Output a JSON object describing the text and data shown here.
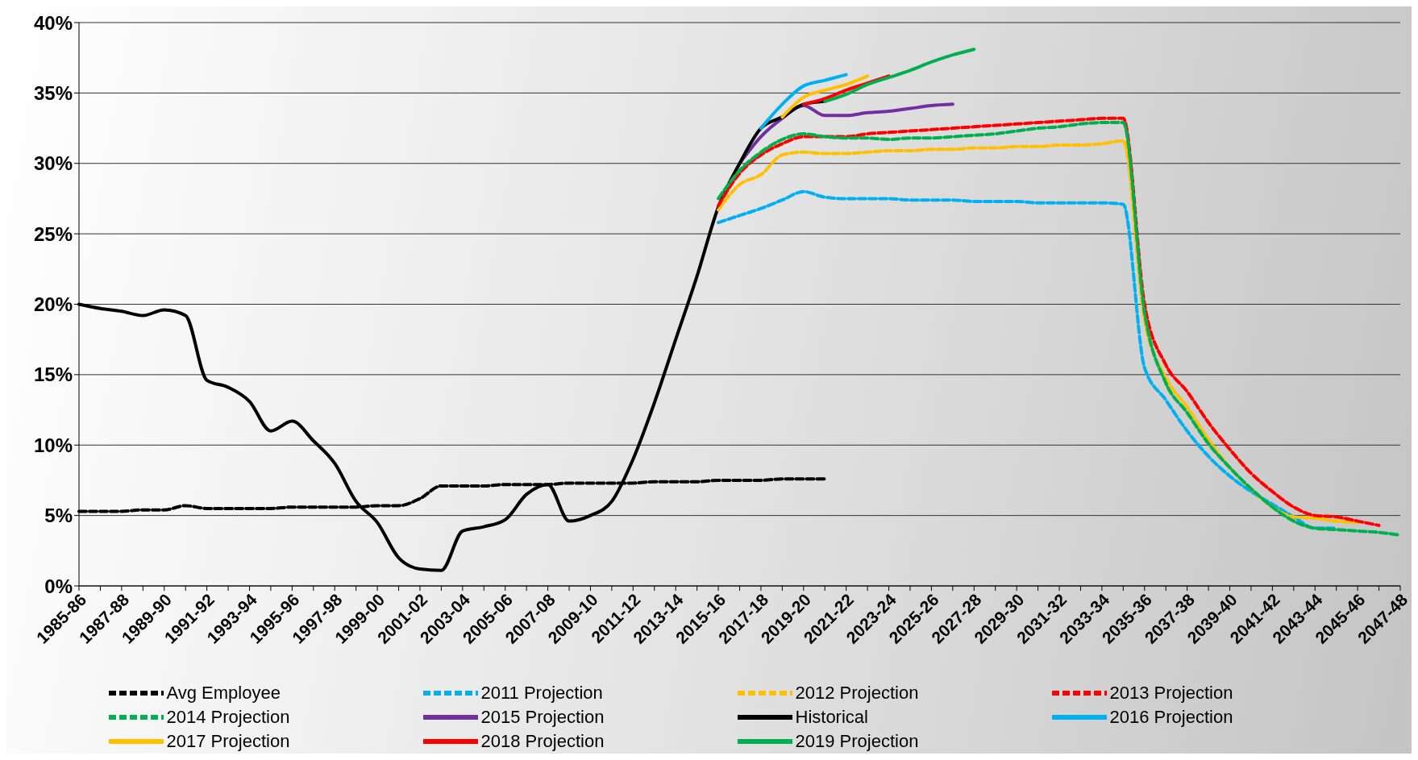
{
  "chart_data": {
    "type": "line",
    "categories": [
      "1985-86",
      null,
      "1987-88",
      null,
      "1989-90",
      null,
      "1991-92",
      null,
      "1993-94",
      null,
      "1995-96",
      null,
      "1997-98",
      null,
      "1999-00",
      null,
      "2001-02",
      null,
      "2003-04",
      null,
      "2005-06",
      null,
      "2007-08",
      null,
      "2009-10",
      null,
      "2011-12",
      null,
      "2013-14",
      null,
      "2015-16",
      null,
      "2017-18",
      null,
      "2019-20",
      null,
      "2021-22",
      null,
      "2023-24",
      null,
      "2025-26",
      null,
      "2027-28",
      null,
      "2029-30",
      null,
      "2031-32",
      null,
      "2033-34",
      null,
      "2035-36",
      null,
      "2037-38",
      null,
      "2039-40",
      null,
      "2041-42",
      null,
      "2043-44",
      null,
      "2045-46",
      null,
      "2047-48"
    ],
    "series": [
      {
        "name": "Avg Employee",
        "color": "#000000",
        "line_style": "dashed",
        "values": [
          5.3,
          5.3,
          5.3,
          5.4,
          5.4,
          5.7,
          5.5,
          5.5,
          5.5,
          5.5,
          5.6,
          5.6,
          5.6,
          5.6,
          5.7,
          5.7,
          6.2,
          7.1,
          7.1,
          7.1,
          7.2,
          7.2,
          7.2,
          7.3,
          7.3,
          7.3,
          7.3,
          7.4,
          7.4,
          7.4,
          7.5,
          7.5,
          7.5,
          7.6,
          7.6,
          7.6,
          null,
          null,
          null,
          null,
          null,
          null,
          null,
          null,
          null,
          null,
          null,
          null,
          null,
          null,
          null,
          null,
          null,
          null,
          null,
          null,
          null,
          null,
          null,
          null,
          null,
          null,
          null
        ]
      },
      {
        "name": "2011 Projection",
        "color": "#00b0f0",
        "line_style": "dashed",
        "values": [
          null,
          null,
          null,
          null,
          null,
          null,
          null,
          null,
          null,
          null,
          null,
          null,
          null,
          null,
          null,
          null,
          null,
          null,
          null,
          null,
          null,
          null,
          null,
          null,
          null,
          null,
          null,
          null,
          null,
          null,
          25.8,
          26.3,
          26.8,
          27.4,
          28.0,
          27.6,
          27.5,
          27.5,
          27.5,
          27.4,
          27.4,
          27.4,
          27.3,
          27.3,
          27.3,
          27.2,
          27.2,
          27.2,
          27.2,
          27.1,
          15.5,
          13.2,
          11.0,
          9.2,
          7.8,
          6.7,
          5.8,
          4.9,
          4.1,
          4.1,
          null,
          null,
          null
        ]
      },
      {
        "name": "2012 Projection",
        "color": "#ffc000",
        "line_style": "dashed",
        "values": [
          null,
          null,
          null,
          null,
          null,
          null,
          null,
          null,
          null,
          null,
          null,
          null,
          null,
          null,
          null,
          null,
          null,
          null,
          null,
          null,
          null,
          null,
          null,
          null,
          null,
          null,
          null,
          null,
          null,
          null,
          26.7,
          28.5,
          29.2,
          30.6,
          30.8,
          30.7,
          30.7,
          30.8,
          30.9,
          30.9,
          31.0,
          31.0,
          31.1,
          31.1,
          31.2,
          31.2,
          31.3,
          31.3,
          31.4,
          31.6,
          18.9,
          14.8,
          12.7,
          10.4,
          8.4,
          6.9,
          5.6,
          4.9,
          4.8,
          4.6,
          4.5,
          null,
          null
        ]
      },
      {
        "name": "2013 Projection",
        "color": "#ff0000",
        "line_style": "dashed",
        "values": [
          null,
          null,
          null,
          null,
          null,
          null,
          null,
          null,
          null,
          null,
          null,
          null,
          null,
          null,
          null,
          null,
          null,
          null,
          null,
          null,
          null,
          null,
          null,
          null,
          null,
          null,
          null,
          null,
          null,
          null,
          27.0,
          29.3,
          30.6,
          31.4,
          31.9,
          31.9,
          31.9,
          32.1,
          32.2,
          32.3,
          32.4,
          32.5,
          32.6,
          32.7,
          32.8,
          32.9,
          33.0,
          33.1,
          33.2,
          33.2,
          20.0,
          15.7,
          13.8,
          11.6,
          9.7,
          8.0,
          6.7,
          5.6,
          5.0,
          4.9,
          4.6,
          4.3,
          null
        ]
      },
      {
        "name": "2014 Projection",
        "color": "#00b050",
        "line_style": "dashed",
        "values": [
          null,
          null,
          null,
          null,
          null,
          null,
          null,
          null,
          null,
          null,
          null,
          null,
          null,
          null,
          null,
          null,
          null,
          null,
          null,
          null,
          null,
          null,
          null,
          null,
          null,
          null,
          null,
          null,
          null,
          null,
          27.5,
          29.5,
          30.8,
          31.7,
          32.1,
          31.9,
          31.8,
          31.8,
          31.7,
          31.8,
          31.8,
          31.9,
          32.0,
          32.1,
          32.3,
          32.5,
          32.6,
          32.8,
          32.9,
          32.9,
          19.4,
          14.4,
          12.3,
          10.1,
          8.4,
          6.9,
          5.6,
          4.6,
          4.1,
          4.0,
          3.9,
          3.8,
          3.6
        ]
      },
      {
        "name": "2015 Projection",
        "color": "#7030a0",
        "line_style": "solid",
        "values": [
          null,
          null,
          null,
          null,
          null,
          null,
          null,
          null,
          null,
          null,
          null,
          null,
          null,
          null,
          null,
          null,
          null,
          null,
          null,
          null,
          null,
          null,
          null,
          null,
          null,
          null,
          null,
          null,
          null,
          null,
          null,
          30.0,
          31.9,
          33.2,
          34.1,
          33.4,
          33.4,
          33.6,
          33.7,
          33.9,
          34.1,
          34.2,
          null,
          null,
          null,
          null,
          null,
          null,
          null,
          null,
          null,
          null,
          null,
          null,
          null,
          null,
          null,
          null,
          null,
          null,
          null,
          null,
          null
        ]
      },
      {
        "name": "Historical",
        "color": "#000000",
        "line_style": "solid",
        "values": [
          20.0,
          19.7,
          19.5,
          19.2,
          19.6,
          19.2,
          14.6,
          14.1,
          13.1,
          11.0,
          11.7,
          10.3,
          8.7,
          6.0,
          4.5,
          2.0,
          1.2,
          1.1,
          3.9,
          4.2,
          4.7,
          6.5,
          7.2,
          4.6,
          5.0,
          6.0,
          9.0,
          13.0,
          17.5,
          22.0,
          26.9,
          30.0,
          32.5,
          33.3,
          34.2,
          34.4,
          null,
          null,
          null,
          null,
          null,
          null,
          null,
          null,
          null,
          null,
          null,
          null,
          null,
          null,
          null,
          null,
          null,
          null,
          null,
          null,
          null,
          null,
          null,
          null,
          null,
          null,
          null
        ]
      },
      {
        "name": "2016 Projection",
        "color": "#00b0f0",
        "line_style": "solid",
        "values": [
          null,
          null,
          null,
          null,
          null,
          null,
          null,
          null,
          null,
          null,
          null,
          null,
          null,
          null,
          null,
          null,
          null,
          null,
          null,
          null,
          null,
          null,
          null,
          null,
          null,
          null,
          null,
          null,
          null,
          null,
          null,
          null,
          32.5,
          34.2,
          35.5,
          35.9,
          36.3,
          null,
          null,
          null,
          null,
          null,
          null,
          null,
          null,
          null,
          null,
          null,
          null,
          null,
          null,
          null,
          null,
          null,
          null,
          null,
          null,
          null,
          null,
          null,
          null,
          null,
          null
        ]
      },
      {
        "name": "2017 Projection",
        "color": "#ffc000",
        "line_style": "solid",
        "values": [
          null,
          null,
          null,
          null,
          null,
          null,
          null,
          null,
          null,
          null,
          null,
          null,
          null,
          null,
          null,
          null,
          null,
          null,
          null,
          null,
          null,
          null,
          null,
          null,
          null,
          null,
          null,
          null,
          null,
          null,
          null,
          null,
          null,
          33.3,
          34.7,
          35.2,
          35.6,
          36.2,
          null,
          null,
          null,
          null,
          null,
          null,
          null,
          null,
          null,
          null,
          null,
          null,
          null,
          null,
          null,
          null,
          null,
          null,
          null,
          null,
          null,
          null,
          null,
          null,
          null
        ]
      },
      {
        "name": "2018 Projection",
        "color": "#ff0000",
        "line_style": "solid",
        "values": [
          null,
          null,
          null,
          null,
          null,
          null,
          null,
          null,
          null,
          null,
          null,
          null,
          null,
          null,
          null,
          null,
          null,
          null,
          null,
          null,
          null,
          null,
          null,
          null,
          null,
          null,
          null,
          null,
          null,
          null,
          null,
          null,
          null,
          null,
          34.2,
          34.6,
          35.2,
          35.7,
          36.2,
          null,
          null,
          null,
          null,
          null,
          null,
          null,
          null,
          null,
          null,
          null,
          null,
          null,
          null,
          null,
          null,
          null,
          null,
          null,
          null,
          null,
          null,
          null,
          null
        ]
      },
      {
        "name": "2019 Projection",
        "color": "#00b050",
        "line_style": "solid",
        "values": [
          null,
          null,
          null,
          null,
          null,
          null,
          null,
          null,
          null,
          null,
          null,
          null,
          null,
          null,
          null,
          null,
          null,
          null,
          null,
          null,
          null,
          null,
          null,
          null,
          null,
          null,
          null,
          null,
          null,
          null,
          null,
          null,
          null,
          null,
          null,
          34.4,
          34.9,
          35.6,
          36.1,
          36.6,
          37.2,
          37.7,
          38.1,
          null,
          null,
          null,
          null,
          null,
          null,
          null,
          null,
          null,
          null,
          null,
          null,
          null,
          null,
          null,
          null,
          null,
          null,
          null,
          null
        ]
      }
    ],
    "ylim": [
      0,
      40
    ],
    "yticks": [
      {
        "value": 0,
        "label": "0%"
      },
      {
        "value": 5,
        "label": "5%"
      },
      {
        "value": 10,
        "label": "10%"
      },
      {
        "value": 15,
        "label": "15%"
      },
      {
        "value": 20,
        "label": "20%"
      },
      {
        "value": 25,
        "label": "25%"
      },
      {
        "value": 30,
        "label": "30%"
      },
      {
        "value": 35,
        "label": "35%"
      },
      {
        "value": 40,
        "label": "40%"
      }
    ],
    "grid": "y",
    "legend": "bottom",
    "marker": "none"
  }
}
